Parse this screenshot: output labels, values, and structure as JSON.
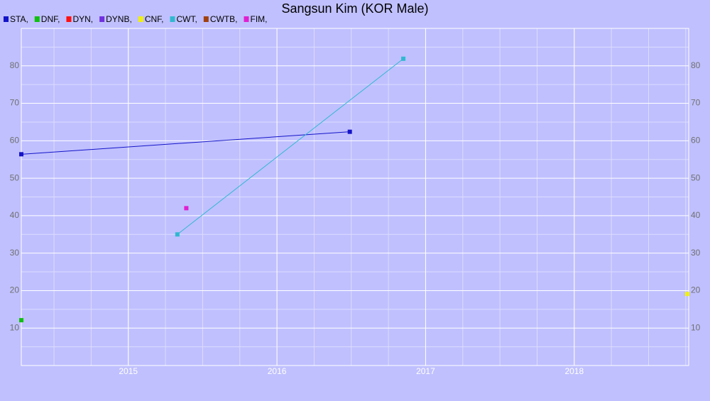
{
  "chart_data": {
    "type": "line",
    "title": "Sangsun Kim (KOR Male)",
    "series": [
      {
        "name": "STA,",
        "color": "#1414c8",
        "x": [
          2014.28,
          2016.49
        ],
        "values": [
          56.4,
          62.4
        ]
      },
      {
        "name": "DNF,",
        "color": "#10c010",
        "x": [
          2014.28
        ],
        "values": [
          12.1
        ]
      },
      {
        "name": "DYN,",
        "color": "#ff1010",
        "x": [],
        "values": []
      },
      {
        "name": "DYNB,",
        "color": "#7030e0",
        "x": [],
        "values": []
      },
      {
        "name": "CNF,",
        "color": "#f0f010",
        "x": [
          2018.76
        ],
        "values": [
          19.1
        ]
      },
      {
        "name": "CWT,",
        "color": "#30b8d0",
        "x": [
          2015.33,
          2016.85
        ],
        "values": [
          35.0,
          81.9
        ]
      },
      {
        "name": "CWTB,",
        "color": "#a04010",
        "x": [],
        "values": []
      },
      {
        "name": "FIM,",
        "color": "#e020d0",
        "x": [
          2015.39
        ],
        "values": [
          42.0
        ]
      }
    ],
    "xlim": [
      2014.28,
      2018.77
    ],
    "xticks": [
      2015,
      2016,
      2017,
      2018
    ],
    "ylim": [
      0,
      90
    ],
    "yticks": [
      10,
      20,
      30,
      40,
      50,
      60,
      70,
      80
    ],
    "grid": true,
    "background": "#c0c0ff"
  }
}
